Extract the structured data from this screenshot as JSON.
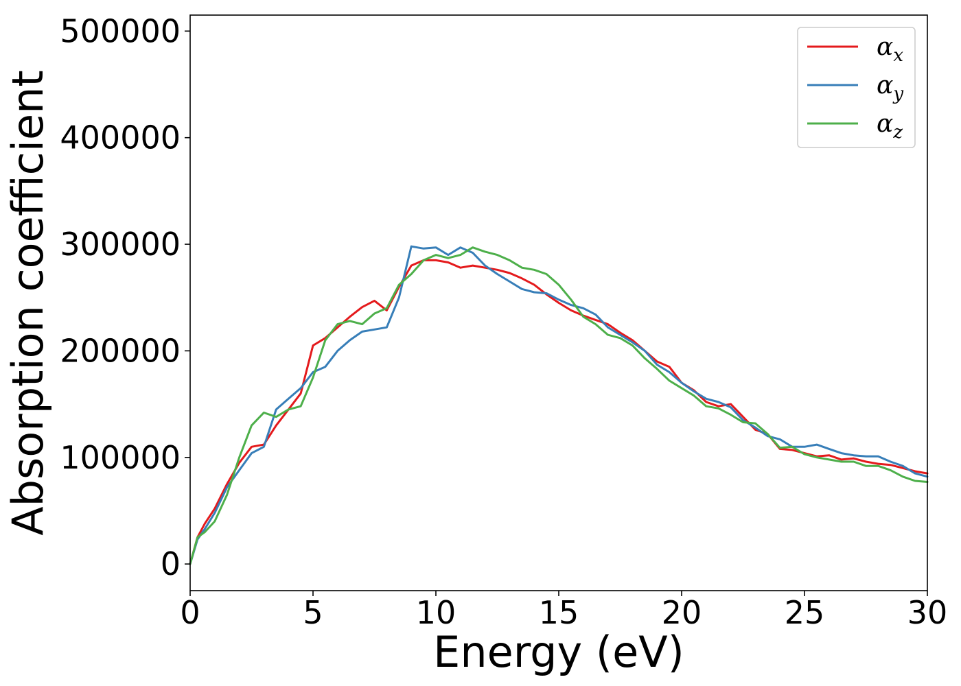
{
  "chart_data": {
    "type": "line",
    "xlabel": "Energy (eV)",
    "ylabel": "Absorption coefficient",
    "xlim": [
      0,
      30
    ],
    "ylim": [
      -25000,
      515000
    ],
    "xticks": [
      0,
      5,
      10,
      15,
      20,
      25,
      30
    ],
    "yticks": [
      0,
      100000,
      200000,
      300000,
      400000,
      500000
    ],
    "grid": false,
    "legend_position": "top-right",
    "series": [
      {
        "name": "αx",
        "symbol": "α",
        "subscript": "x",
        "color": "#e41a1c",
        "x": [
          0,
          0.3,
          0.6,
          1,
          1.5,
          2,
          2.5,
          3,
          3.5,
          4,
          4.5,
          5,
          5.5,
          6,
          6.5,
          7,
          7.5,
          8,
          8.5,
          9,
          9.5,
          10,
          10.5,
          11,
          11.5,
          12,
          12.5,
          13,
          13.5,
          14,
          14.5,
          15,
          15.5,
          16,
          16.5,
          17,
          17.5,
          18,
          18.5,
          19,
          19.5,
          20,
          20.5,
          21,
          21.5,
          22,
          22.5,
          23,
          23.5,
          24,
          24.5,
          25,
          25.5,
          26,
          26.5,
          27,
          27.5,
          28,
          28.5,
          29,
          29.5,
          30
        ],
        "values": [
          0,
          25000,
          38000,
          52000,
          75000,
          95000,
          110000,
          112000,
          130000,
          145000,
          160000,
          205000,
          212000,
          222000,
          232000,
          241000,
          247000,
          238000,
          260000,
          280000,
          285000,
          285000,
          283000,
          278000,
          280000,
          278000,
          276000,
          273000,
          268000,
          262000,
          253000,
          245000,
          238000,
          233000,
          229000,
          225000,
          217000,
          210000,
          200000,
          190000,
          185000,
          170000,
          163000,
          152000,
          148000,
          150000,
          138000,
          126000,
          122000,
          108000,
          107000,
          104000,
          101000,
          102000,
          98000,
          99000,
          96000,
          94000,
          93000,
          90000,
          87000,
          85000
        ]
      },
      {
        "name": "αy",
        "symbol": "α",
        "subscript": "y",
        "color": "#377eb8",
        "x": [
          0,
          0.3,
          0.6,
          1,
          1.5,
          2,
          2.5,
          3,
          3.5,
          4,
          4.5,
          5,
          5.5,
          6,
          6.5,
          7,
          7.5,
          8,
          8.5,
          9,
          9.5,
          10,
          10.5,
          11,
          11.5,
          12,
          12.5,
          13,
          13.5,
          14,
          14.5,
          15,
          15.5,
          16,
          16.5,
          17,
          17.5,
          18,
          18.5,
          19,
          19.5,
          20,
          20.5,
          21,
          21.5,
          22,
          22.5,
          23,
          23.5,
          24,
          24.5,
          25,
          25.5,
          26,
          26.5,
          27,
          27.5,
          28,
          28.5,
          29,
          29.5,
          30
        ],
        "values": [
          0,
          23000,
          33000,
          48000,
          72000,
          88000,
          104000,
          110000,
          145000,
          155000,
          165000,
          180000,
          185000,
          200000,
          210000,
          218000,
          220000,
          222000,
          250000,
          298000,
          296000,
          297000,
          290000,
          297000,
          292000,
          280000,
          272000,
          265000,
          258000,
          255000,
          254000,
          248000,
          243000,
          240000,
          234000,
          222000,
          215000,
          208000,
          200000,
          187000,
          180000,
          170000,
          162000,
          155000,
          152000,
          147000,
          135000,
          128000,
          120000,
          117000,
          110000,
          110000,
          112000,
          108000,
          104000,
          102000,
          101000,
          101000,
          96000,
          92000,
          85000,
          82000
        ]
      },
      {
        "name": "αz",
        "symbol": "α",
        "subscript": "z",
        "color": "#4daf4a",
        "x": [
          0,
          0.3,
          0.6,
          1,
          1.5,
          2,
          2.5,
          3,
          3.5,
          4,
          4.5,
          5,
          5.5,
          6,
          6.5,
          7,
          7.5,
          8,
          8.5,
          9,
          9.5,
          10,
          10.5,
          11,
          11.5,
          12,
          12.5,
          13,
          13.5,
          14,
          14.5,
          15,
          15.5,
          16,
          16.5,
          17,
          17.5,
          18,
          18.5,
          19,
          19.5,
          20,
          20.5,
          21,
          21.5,
          22,
          22.5,
          23,
          23.5,
          24,
          24.5,
          25,
          25.5,
          26,
          26.5,
          27,
          27.5,
          28,
          28.5,
          29,
          29.5,
          30
        ],
        "values": [
          0,
          25000,
          30000,
          40000,
          65000,
          100000,
          130000,
          142000,
          138000,
          145000,
          148000,
          175000,
          210000,
          225000,
          228000,
          225000,
          235000,
          240000,
          262000,
          272000,
          285000,
          290000,
          287000,
          290000,
          297000,
          293000,
          290000,
          285000,
          278000,
          276000,
          272000,
          262000,
          248000,
          232000,
          225000,
          215000,
          212000,
          205000,
          193000,
          183000,
          172000,
          165000,
          158000,
          148000,
          146000,
          140000,
          133000,
          132000,
          122000,
          109000,
          110000,
          103000,
          100000,
          98000,
          96000,
          96000,
          92000,
          92000,
          88000,
          82000,
          78000,
          77000
        ]
      }
    ]
  }
}
